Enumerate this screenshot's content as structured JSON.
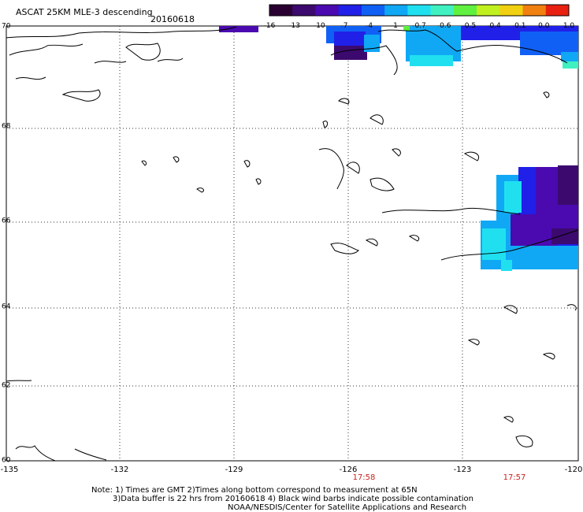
{
  "header": {
    "title": "ASCAT 25KM MLE-3 descending",
    "date": "20160618"
  },
  "colorbar": {
    "labels": [
      "-16",
      "-13",
      "-10",
      "-7",
      "-4",
      "-1",
      "-0.7",
      "-0.6",
      "-0.5",
      "-0.4",
      "-0.1",
      "0.0",
      "1.0"
    ],
    "colors": [
      "#2a0033",
      "#3c0a6e",
      "#4a0ab0",
      "#2020e8",
      "#1060f5",
      "#10a8f5",
      "#20e0f0",
      "#40f0c0",
      "#60f040",
      "#c0f020",
      "#f0d010",
      "#f08010",
      "#e82010"
    ]
  },
  "map": {
    "lon_labels": [
      "-135",
      "-132",
      "-129",
      "-126",
      "-123",
      "-120"
    ],
    "lat_labels": [
      "70",
      "68",
      "66",
      "64",
      "62",
      "60"
    ],
    "time_labels": [
      "17:58",
      "17:57"
    ],
    "coast_color": "#000000",
    "grid_color": "#333333"
  },
  "notes": {
    "line1": "Note: 1) Times are GMT 2)Times along bottom correspond to measurement at 65N",
    "line2": "3)Data buffer is 22 hrs from 20160618 4) Black wind barbs indicate possible contamination",
    "line3": "NOAA/NESDIS/Center for Satellite Applications and Research"
  }
}
